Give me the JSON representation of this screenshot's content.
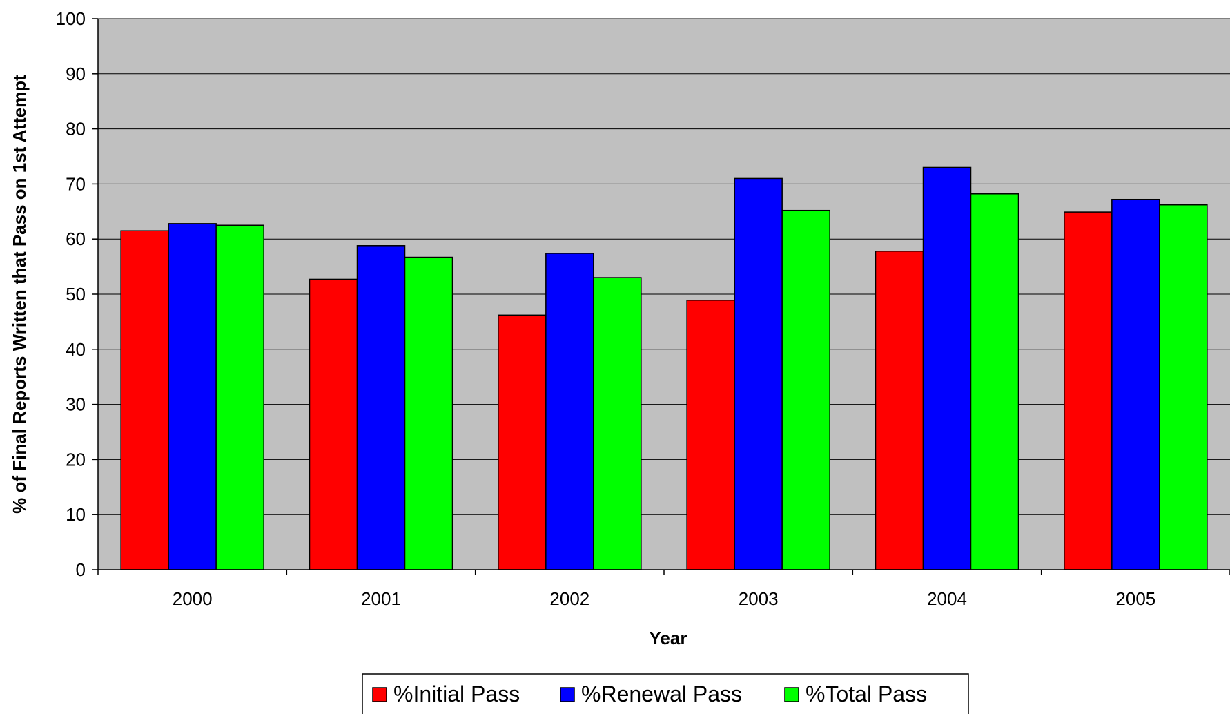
{
  "chart_data": {
    "type": "bar",
    "title": "",
    "xlabel": "Year",
    "ylabel": "% of Final Reports Written that Pass on 1st Attempt",
    "categories": [
      "2000",
      "2001",
      "2002",
      "2003",
      "2004",
      "2005"
    ],
    "series": [
      {
        "name": "%Initial Pass",
        "color": "#ff0000",
        "values": [
          61.5,
          52.7,
          46.2,
          48.9,
          57.8,
          64.9
        ]
      },
      {
        "name": "%Renewal Pass",
        "color": "#0000ff",
        "values": [
          62.8,
          58.8,
          57.4,
          71.0,
          73.0,
          67.2
        ]
      },
      {
        "name": "%Total Pass",
        "color": "#00ff00",
        "values": [
          62.5,
          56.7,
          53.0,
          65.2,
          68.2,
          66.2
        ]
      }
    ],
    "yticks": [
      "0",
      "10",
      "20",
      "30",
      "40",
      "50",
      "60",
      "70",
      "80",
      "90",
      "100"
    ],
    "ylim": [
      0,
      100
    ],
    "grid": true,
    "plot_background": "#c0c0c0",
    "legend_position": "bottom"
  }
}
